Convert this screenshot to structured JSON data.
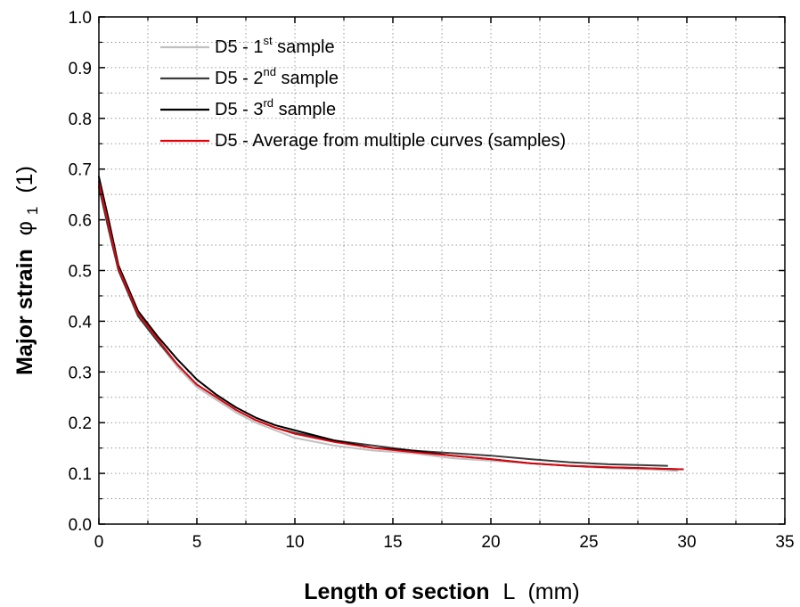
{
  "chart_data": {
    "type": "line",
    "title": "",
    "xlabel": {
      "main": "Length of section",
      "symbol": "L",
      "unit": "(mm)"
    },
    "ylabel": {
      "main": "Major strain",
      "symbol": "φ",
      "subscript": "1",
      "unit": "(1)"
    },
    "xlim": [
      0,
      35
    ],
    "ylim": [
      0,
      1.0
    ],
    "xticks": [
      "0",
      "5",
      "10",
      "15",
      "20",
      "25",
      "30",
      "35"
    ],
    "yticks": [
      "0.0",
      "0.1",
      "0.2",
      "0.3",
      "0.4",
      "0.5",
      "0.6",
      "0.7",
      "0.8",
      "0.9",
      "1.0"
    ],
    "grid": "dotted, major and minor",
    "legend_position": "top-left",
    "series": [
      {
        "name": "D5 - 1st sample",
        "legend": {
          "prefix": "D5 - 1",
          "sup": "st",
          "suffix": " sample"
        },
        "color": "#c0c0c0",
        "x": [
          0,
          0.5,
          1,
          2,
          3,
          4,
          5,
          6,
          7,
          8,
          9,
          10,
          12,
          14,
          16,
          18,
          20,
          22,
          24,
          26,
          28,
          29.5
        ],
        "y": [
          0.67,
          0.59,
          0.5,
          0.41,
          0.36,
          0.31,
          0.27,
          0.245,
          0.22,
          0.2,
          0.185,
          0.17,
          0.155,
          0.145,
          0.14,
          0.13,
          0.125,
          0.12,
          0.115,
          0.11,
          0.108,
          0.105
        ]
      },
      {
        "name": "D5 - 2nd sample",
        "legend": {
          "prefix": "D5 - 2",
          "sup": "nd",
          "suffix": " sample"
        },
        "color": "#3c3c3c",
        "x": [
          0,
          0.5,
          1,
          2,
          3,
          4,
          5,
          6,
          7,
          8,
          9,
          10,
          12,
          14,
          16,
          18,
          20,
          22,
          24,
          26,
          28,
          29
        ],
        "y": [
          0.665,
          0.58,
          0.5,
          0.41,
          0.36,
          0.315,
          0.275,
          0.25,
          0.225,
          0.205,
          0.19,
          0.18,
          0.165,
          0.155,
          0.145,
          0.14,
          0.135,
          0.128,
          0.122,
          0.118,
          0.116,
          0.115
        ]
      },
      {
        "name": "D5 - 3rd sample",
        "legend": {
          "prefix": "D5 - 3",
          "sup": "rd",
          "suffix": " sample"
        },
        "color": "#000000",
        "x": [
          0,
          0.5,
          1,
          2,
          3,
          4,
          5,
          6,
          7,
          8,
          9,
          10,
          12,
          14,
          16,
          18,
          20,
          22,
          24,
          26,
          28,
          29.8
        ],
        "y": [
          0.685,
          0.6,
          0.51,
          0.42,
          0.37,
          0.325,
          0.285,
          0.255,
          0.23,
          0.21,
          0.195,
          0.185,
          0.165,
          0.15,
          0.145,
          0.135,
          0.128,
          0.12,
          0.115,
          0.112,
          0.11,
          0.108
        ]
      },
      {
        "name": "D5 - Average from multiple curves (samples)",
        "legend": {
          "prefix": "D5 - Average from multiple curves (samples)",
          "sup": "",
          "suffix": ""
        },
        "color": "#e8000b",
        "x": [
          0,
          0.5,
          1,
          2,
          3,
          4,
          5,
          6,
          7,
          8,
          9,
          10,
          12,
          14,
          16,
          18,
          20,
          22,
          24,
          26,
          28,
          29.8
        ],
        "y": [
          0.675,
          0.59,
          0.505,
          0.415,
          0.365,
          0.315,
          0.275,
          0.25,
          0.225,
          0.205,
          0.19,
          0.178,
          0.162,
          0.15,
          0.142,
          0.135,
          0.128,
          0.12,
          0.115,
          0.112,
          0.11,
          0.108
        ]
      }
    ]
  }
}
